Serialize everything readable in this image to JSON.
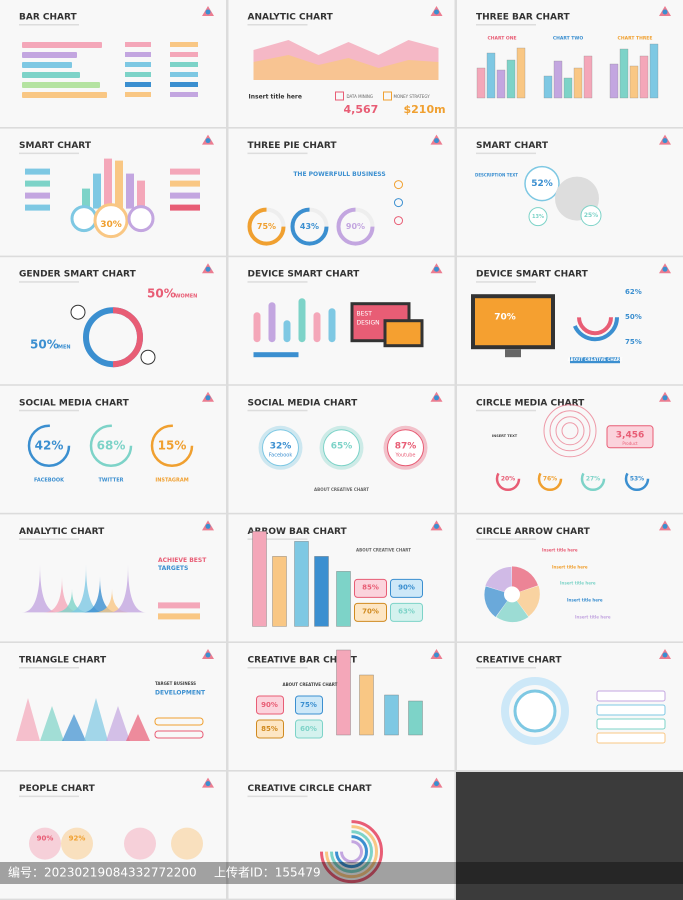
{
  "slides": [
    {
      "title": "BAR CHART",
      "texts": []
    },
    {
      "title": "ANALYTIC CHART",
      "texts": [
        "Insert title here",
        "4,567",
        "$210m",
        "DATA MINING",
        "MONEY STRATEGY"
      ]
    },
    {
      "title": "THREE BAR CHART",
      "texts": [
        "CHART ONE",
        "CHART TWO",
        "CHART THREE"
      ]
    },
    {
      "title": "SMART CHART",
      "texts": [
        "30%"
      ]
    },
    {
      "title": "THREE PIE CHART",
      "texts": [
        "THE POWERFULL BUSINESS",
        "75%",
        "43%",
        "90%"
      ]
    },
    {
      "title": "SMART CHART",
      "texts": [
        "52%",
        "13%",
        "25%",
        "DESCRIPTION TEXT"
      ]
    },
    {
      "title": "GENDER SMART CHART",
      "texts": [
        "50%",
        "WOMEN",
        "50%",
        "MEN"
      ]
    },
    {
      "title": "DEVICE SMART CHART",
      "texts": [
        "BEST",
        "DESIGN"
      ]
    },
    {
      "title": "DEVICE SMART CHART",
      "texts": [
        "70%",
        "62%",
        "50%",
        "75%",
        "ABOUT CREATIVE CHART"
      ]
    },
    {
      "title": "SOCIAL MEDIA CHART",
      "texts": [
        "42%",
        "68%",
        "15%",
        "FACEBOOK",
        "TWITTER",
        "INSTAGRAM"
      ]
    },
    {
      "title": "SOCIAL MEDIA CHART",
      "texts": [
        "32%",
        "Facebook",
        "65%",
        "87%",
        "Youtube",
        "ABOUT CREATIVE CHART"
      ]
    },
    {
      "title": "CIRCLE MEDIA CHART",
      "texts": [
        "3,456",
        "Product",
        "INSERT TEXT",
        "20%",
        "76%",
        "27%",
        "53%"
      ]
    },
    {
      "title": "ANALYTIC CHART",
      "texts": [
        "ACHIEVE BEST",
        "TARGETS"
      ]
    },
    {
      "title": "ARROW BAR CHART",
      "texts": [
        "ABOUT CREATIVE CHART",
        "85%",
        "90%",
        "70%",
        "63%"
      ]
    },
    {
      "title": "CIRCLE ARROW CHART",
      "texts": [
        "Insert title here",
        "Insert title here",
        "Insert title here",
        "Insert title here",
        "Insert title here"
      ]
    },
    {
      "title": "TRIANGLE CHART",
      "texts": [
        "TARGET BUSINESS",
        "DEVELOPMENT"
      ]
    },
    {
      "title": "CREATIVE BAR CHART",
      "texts": [
        "ABOUT CREATIVE CHART",
        "90%",
        "75%",
        "85%",
        "60%"
      ]
    },
    {
      "title": "CREATIVE CHART",
      "texts": []
    },
    {
      "title": "PEOPLE CHART",
      "texts": [
        "90%",
        "92%"
      ]
    },
    {
      "title": "CREATIVE CIRCLE CHART",
      "texts": []
    }
  ],
  "footer": {
    "id": "编号：20230219084332772200",
    "uploader": "上传者ID：155479"
  }
}
